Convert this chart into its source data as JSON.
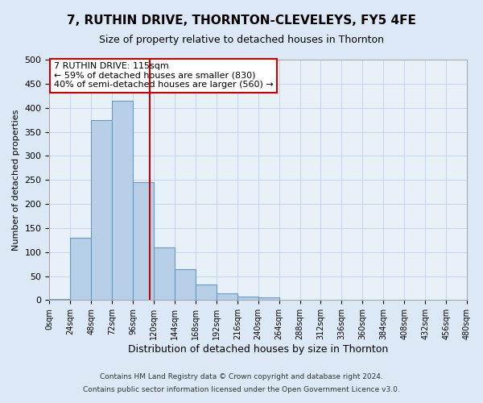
{
  "title": "7, RUTHIN DRIVE, THORNTON-CLEVELEYS, FY5 4FE",
  "subtitle": "Size of property relative to detached houses in Thornton",
  "xlabel": "Distribution of detached houses by size in Thornton",
  "ylabel": "Number of detached properties",
  "bin_edges": [
    0,
    24,
    48,
    72,
    96,
    120,
    144,
    168,
    192,
    216,
    240,
    264,
    288,
    312,
    336,
    360,
    384,
    408,
    432,
    456,
    480
  ],
  "bar_heights": [
    2,
    130,
    375,
    415,
    245,
    110,
    65,
    33,
    15,
    7,
    5,
    0,
    0,
    0,
    0,
    0,
    0,
    0,
    0,
    0
  ],
  "bar_color": "#b8cfe8",
  "bar_edge_color": "#6699cc",
  "vline_x": 115,
  "vline_color": "#cc0000",
  "annotation_title": "7 RUTHIN DRIVE: 115sqm",
  "annotation_line1": "← 59% of detached houses are smaller (830)",
  "annotation_line2": "40% of semi-detached houses are larger (560) →",
  "annotation_box_color": "white",
  "annotation_box_edge": "#cc0000",
  "ylim": [
    0,
    500
  ],
  "yticks": [
    0,
    50,
    100,
    150,
    200,
    250,
    300,
    350,
    400,
    450,
    500
  ],
  "footer1": "Contains HM Land Registry data © Crown copyright and database right 2024.",
  "footer2": "Contains public sector information licensed under the Open Government Licence v3.0.",
  "bg_color": "#dce8f5",
  "plot_bg_color": "#e8f0f8",
  "grid_color": "#c5d5e8"
}
